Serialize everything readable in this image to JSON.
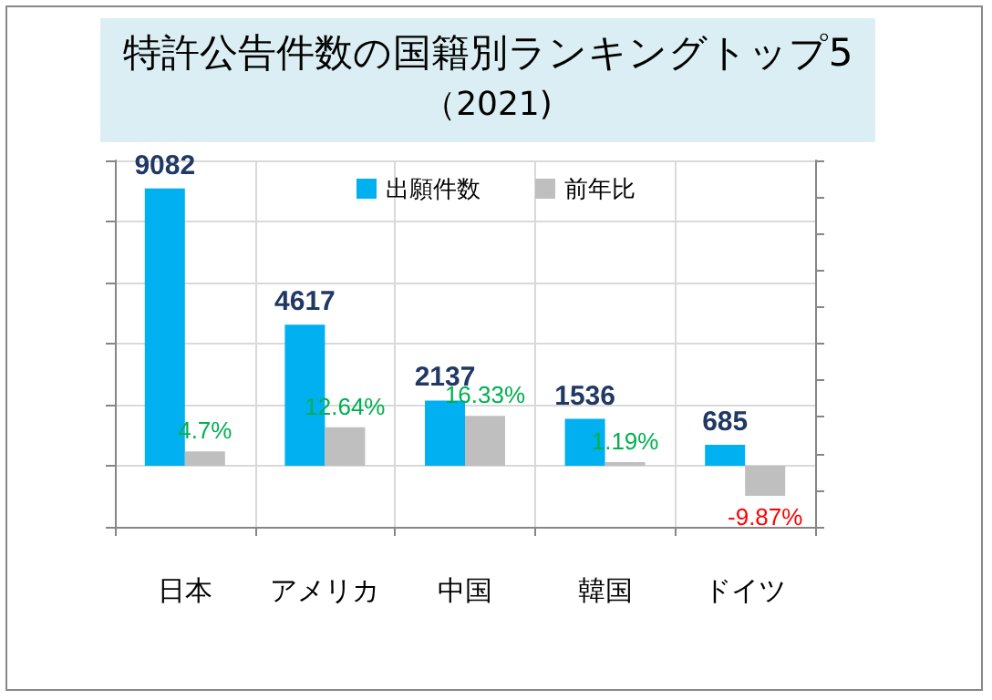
{
  "chart_data": {
    "type": "bar",
    "title": "特許公告件数の国籍別ランキングトップ5",
    "subtitle": "（2021)",
    "categories": [
      "日本",
      "アメリカ",
      "中国",
      "韓国",
      "ドイツ"
    ],
    "series": [
      {
        "name": "出願件数",
        "color": "#00b0f0",
        "values": [
          9082,
          4617,
          2137,
          1536,
          685
        ],
        "value_labels": [
          "9082",
          "4617",
          "2137",
          "1536",
          "685"
        ]
      },
      {
        "name": "前年比",
        "color": "#bfbfbf",
        "axis": "y2",
        "values": [
          4.7,
          12.64,
          16.33,
          1.19,
          -9.87
        ],
        "value_labels": [
          "4.7%",
          "12.64%",
          "16.33%",
          "1.19%",
          "-9.87%"
        ]
      }
    ],
    "ylim": [
      -2000,
      10000
    ],
    "yticks": [
      {
        "value": -2000,
        "label": null
      },
      {
        "value": 0,
        "label": null
      },
      {
        "value": 2000,
        "label": null
      },
      {
        "value": 4000,
        "label": null
      },
      {
        "value": 6000,
        "label": null
      },
      {
        "value": 8000,
        "label": null
      },
      {
        "value": 10000,
        "label": null
      }
    ],
    "y2lim": [
      -20,
      100
    ],
    "y2ticks": [
      {
        "value": -20,
        "label": null
      },
      {
        "value": -8,
        "label": null
      },
      {
        "value": 4,
        "label": null
      },
      {
        "value": 16,
        "label": null
      },
      {
        "value": 28,
        "label": null
      },
      {
        "value": 40,
        "label": null
      },
      {
        "value": 52,
        "label": null
      },
      {
        "value": 64,
        "label": null
      },
      {
        "value": 76,
        "label": null
      },
      {
        "value": 88,
        "label": null
      },
      {
        "value": 100,
        "label": null
      }
    ],
    "tick_labels": "x",
    "grid": true,
    "legend": "top"
  }
}
